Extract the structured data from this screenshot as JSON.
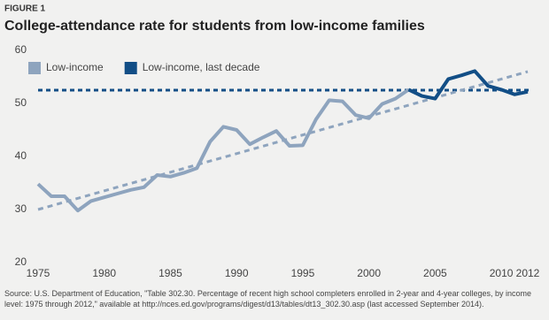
{
  "chart_data": {
    "type": "line",
    "figure_label": "FIGURE 1",
    "title": "College-attendance rate for students from low-income families",
    "x": [
      1975,
      1976,
      1977,
      1978,
      1979,
      1980,
      1981,
      1982,
      1983,
      1984,
      1985,
      1986,
      1987,
      1988,
      1989,
      1990,
      1991,
      1992,
      1993,
      1994,
      1995,
      1996,
      1997,
      1998,
      1999,
      2000,
      2001,
      2002,
      2003,
      2004,
      2005,
      2006,
      2007,
      2008,
      2009,
      2010,
      2011,
      2012
    ],
    "series": [
      {
        "name": "Low-income",
        "color": "#8ea4be",
        "values": [
          34.8,
          32.5,
          32.5,
          29.8,
          31.6,
          32.3,
          33.0,
          33.7,
          34.2,
          36.5,
          36.2,
          36.9,
          37.8,
          42.8,
          45.6,
          45.0,
          42.3,
          43.6,
          44.8,
          42.0,
          42.1,
          47.0,
          50.6,
          50.4,
          47.8,
          47.2,
          49.9,
          50.9,
          52.6,
          null,
          null,
          null,
          null,
          null,
          null,
          null,
          null,
          null
        ]
      },
      {
        "name": "Low-income, last decade",
        "color": "#124e86",
        "values": [
          null,
          null,
          null,
          null,
          null,
          null,
          null,
          null,
          null,
          null,
          null,
          null,
          null,
          null,
          null,
          null,
          null,
          null,
          null,
          null,
          null,
          null,
          null,
          null,
          null,
          null,
          null,
          null,
          52.6,
          51.4,
          50.9,
          54.6,
          55.3,
          56.1,
          53.3,
          52.6,
          51.7,
          52.2
        ]
      }
    ],
    "trend_line": {
      "x": [
        1975,
        2012
      ],
      "values": [
        30,
        56
      ],
      "color": "#8ea4be"
    },
    "reference_line": {
      "value": 52.5,
      "color": "#124e86"
    },
    "xlim": [
      1975,
      2012
    ],
    "ylim": [
      20,
      60
    ],
    "xticks": [
      1975,
      1980,
      1985,
      1990,
      1995,
      2000,
      2005,
      2010,
      2012
    ],
    "yticks": [
      20,
      30,
      40,
      50,
      60
    ],
    "grid": false,
    "legend": "top-left",
    "source": "Source: U.S. Department of Education, \"Table 302.30. Percentage of recent high school completers enrolled in 2-year and 4-year colleges, by income level: 1975 through 2012,\" available at http://nces.ed.gov/programs/digest/d13/tables/dt13_302.30.asp (last accessed September 2014)."
  }
}
